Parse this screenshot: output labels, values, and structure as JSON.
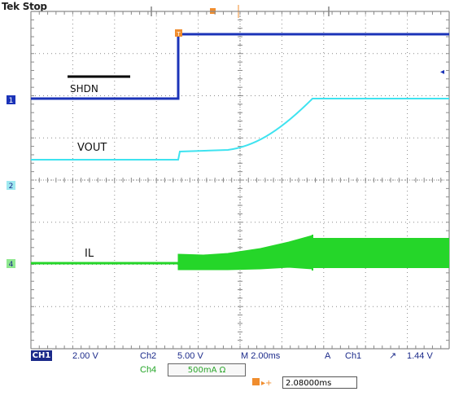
{
  "header": {
    "title": "Tek Stop"
  },
  "colors": {
    "ch1": "#1b33b8",
    "ch2": "#3fe3f0",
    "ch4": "#25d629",
    "grid": "#8a8a8a",
    "trigger_marker": "#f08d2e",
    "text": "#1b2a8a"
  },
  "traces": {
    "ch1_label": "SHDN",
    "ch2_label": "VOUT",
    "ch4_label": "IL",
    "trigger_marker_symbol": "T"
  },
  "markers": {
    "ch1": "1",
    "ch2": "2",
    "ch4": "4"
  },
  "status_bar": {
    "ch1_tag": "CH1",
    "ch1_scale": "2.00 V",
    "ch2_tag": "Ch2",
    "ch2_scale": "5.00 V",
    "timebase": "M 2.00ms",
    "acq_mode": "A",
    "trigger_source": "Ch1",
    "trigger_slope": "↗",
    "trigger_level": "1.44 V",
    "ch4_tag": "Ch4",
    "ch4_scale": "500mA Ω",
    "delay_label": "▸+",
    "delay_value": "2.08000ms"
  }
}
